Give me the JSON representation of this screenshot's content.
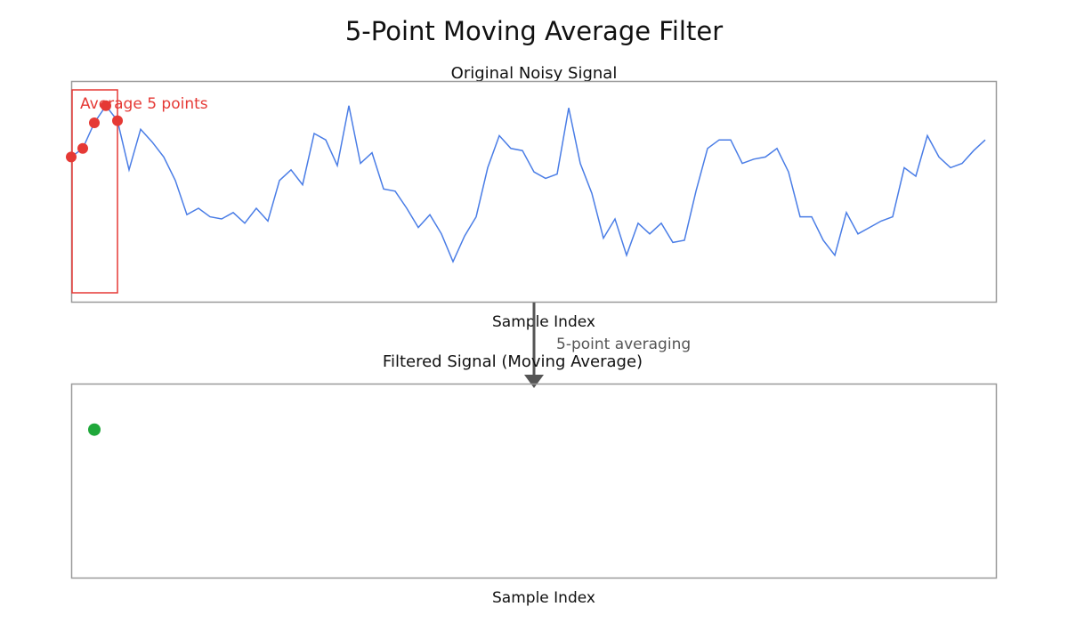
{
  "title": "5-Point Moving Average Filter",
  "colors": {
    "signal": "#4a7de6",
    "window": "#e53935",
    "filtered": "#1fa83a",
    "frame": "#999999",
    "arrow": "#555555",
    "text": "#111111",
    "annotation": "#555555"
  },
  "chart_data": [
    {
      "type": "line",
      "title": "Original Noisy Signal",
      "xlabel": "Sample Index",
      "ylabel": "",
      "grid": false,
      "xlim": [
        0,
        80
      ],
      "ylim": [
        0,
        1
      ],
      "series": [
        {
          "values": [
            0.64,
            0.68,
            0.8,
            0.88,
            0.81,
            0.58,
            0.77,
            0.71,
            0.64,
            0.53,
            0.37,
            0.4,
            0.36,
            0.35,
            0.38,
            0.33,
            0.4,
            0.34,
            0.53,
            0.58,
            0.51,
            0.75,
            0.72,
            0.6,
            0.88,
            0.61,
            0.66,
            0.49,
            0.48,
            0.4,
            0.31,
            0.37,
            0.28,
            0.15,
            0.27,
            0.36,
            0.59,
            0.74,
            0.68,
            0.67,
            0.57,
            0.54,
            0.56,
            0.87,
            0.61,
            0.47,
            0.26,
            0.35,
            0.18,
            0.33,
            0.28,
            0.33,
            0.24,
            0.25,
            0.48,
            0.68,
            0.72,
            0.72,
            0.61,
            0.63,
            0.64,
            0.68,
            0.57,
            0.36,
            0.36,
            0.25,
            0.18,
            0.38,
            0.28,
            0.31,
            0.34,
            0.36,
            0.59,
            0.55,
            0.74,
            0.64,
            0.59,
            0.61,
            0.67,
            0.72
          ]
        }
      ],
      "window": {
        "label": "Average 5 points",
        "start_index": 0,
        "size": 5
      }
    },
    {
      "type": "line",
      "title": "Filtered Signal (Moving Average)",
      "xlabel": "Sample Index",
      "ylabel": "",
      "grid": false,
      "xlim": [
        0,
        80
      ],
      "ylim": [
        0,
        1
      ],
      "series": [
        {
          "points": [
            {
              "x": 2,
              "y": 0.76
            }
          ]
        }
      ]
    }
  ],
  "annotation": {
    "label": "5-point averaging"
  }
}
